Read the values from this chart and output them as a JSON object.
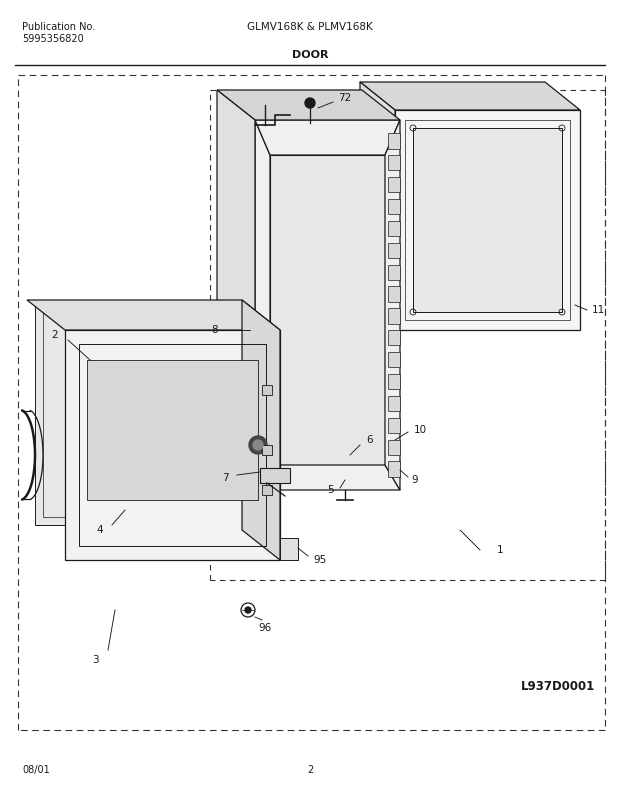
{
  "title_center": "GLMV168K & PLMV168K",
  "title_left1": "Publication No.",
  "title_left2": "5995356820",
  "section_title": "DOOR",
  "diagram_id": "L937D0001",
  "footer_left": "08/01",
  "footer_center": "2",
  "bg_color": "#ffffff",
  "line_color": "#1a1a1a",
  "dash_color": "#333333"
}
